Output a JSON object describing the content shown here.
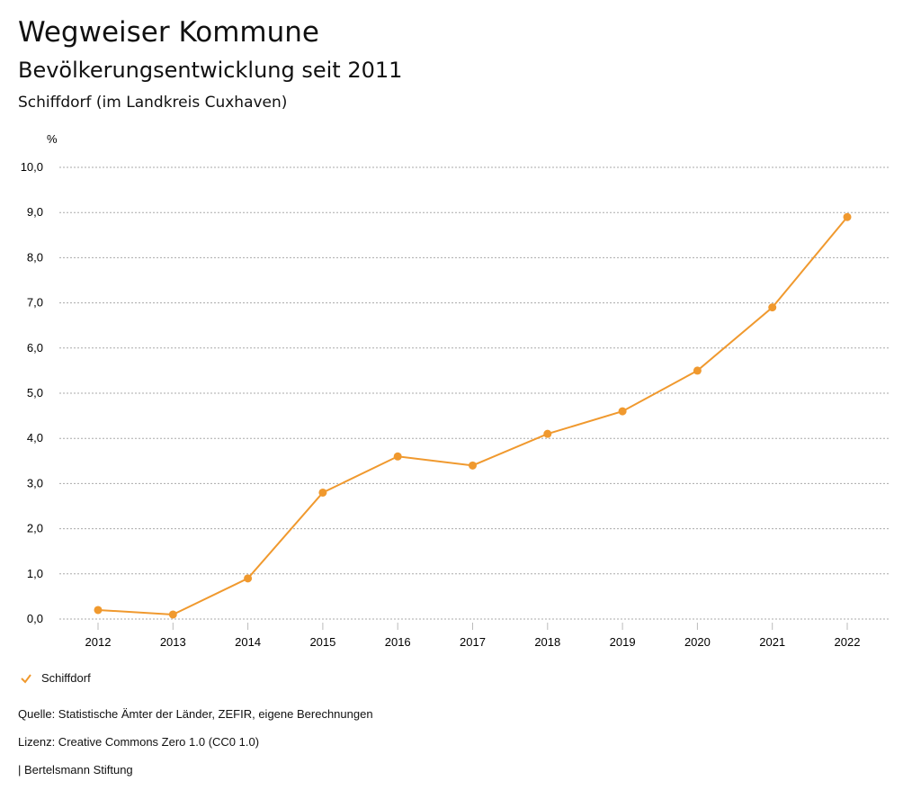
{
  "header": {
    "title": "Wegweiser Kommune",
    "subtitle": "Bevölkerungsentwicklung seit 2011",
    "region": "Schiffdorf (im Landkreis Cuxhaven)"
  },
  "chart_data": {
    "type": "line",
    "ylabel": "%",
    "ylim": [
      0,
      10
    ],
    "yticks": [
      "0,0",
      "1,0",
      "2,0",
      "3,0",
      "4,0",
      "5,0",
      "6,0",
      "7,0",
      "8,0",
      "9,0",
      "10,0"
    ],
    "categories": [
      "2012",
      "2013",
      "2014",
      "2015",
      "2016",
      "2017",
      "2018",
      "2019",
      "2020",
      "2021",
      "2022"
    ],
    "series": [
      {
        "name": "Schiffdorf",
        "color": "#f0992e",
        "values": [
          0.2,
          0.1,
          0.9,
          2.8,
          3.6,
          3.4,
          4.1,
          4.6,
          5.5,
          6.9,
          8.9
        ]
      }
    ],
    "grid": true,
    "legend": "bottom-left"
  },
  "footer": {
    "source": "Quelle: Statistische Ämter der Länder, ZEFIR, eigene Berechnungen",
    "license": "Lizenz: Creative Commons Zero 1.0 (CC0 1.0)",
    "org": "| Bertelsmann Stiftung"
  }
}
